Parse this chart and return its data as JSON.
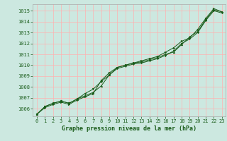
{
  "title": "Graphe pression niveau de la mer (hPa)",
  "background_color": "#cce8e0",
  "grid_color": "#ffb0b0",
  "line_color": "#1a5c1a",
  "xlim": [
    -0.5,
    23.5
  ],
  "ylim": [
    1005.3,
    1015.6
  ],
  "yticks": [
    1006,
    1007,
    1008,
    1009,
    1010,
    1011,
    1012,
    1013,
    1014,
    1015
  ],
  "xticks": [
    0,
    1,
    2,
    3,
    4,
    5,
    6,
    7,
    8,
    9,
    10,
    11,
    12,
    13,
    14,
    15,
    16,
    17,
    18,
    19,
    20,
    21,
    22,
    23
  ],
  "series1": [
    1005.5,
    1006.2,
    1006.5,
    1006.7,
    1006.5,
    1006.9,
    1007.2,
    1007.5,
    1008.1,
    1009.1,
    1009.8,
    1010.0,
    1010.2,
    1010.3,
    1010.5,
    1010.7,
    1011.0,
    1011.2,
    1011.9,
    1012.6,
    1013.1,
    1014.2,
    1015.1,
    1014.9
  ],
  "series2": [
    1005.5,
    1006.2,
    1006.5,
    1006.7,
    1006.5,
    1006.9,
    1007.4,
    1007.8,
    1008.5,
    1009.1,
    1009.7,
    1009.9,
    1010.1,
    1010.2,
    1010.4,
    1010.6,
    1010.9,
    1011.3,
    1012.0,
    1012.4,
    1013.0,
    1014.1,
    1015.0,
    1014.8
  ],
  "series3": [
    1005.5,
    1006.1,
    1006.4,
    1006.6,
    1006.4,
    1006.8,
    1007.1,
    1007.4,
    1008.6,
    1009.3,
    1009.8,
    1010.0,
    1010.2,
    1010.4,
    1010.6,
    1010.8,
    1011.2,
    1011.6,
    1012.2,
    1012.5,
    1013.3,
    1014.3,
    1015.2,
    1014.9
  ],
  "ylabel_fontsize": 5,
  "xlabel_fontsize": 6,
  "tick_fontsize": 5
}
